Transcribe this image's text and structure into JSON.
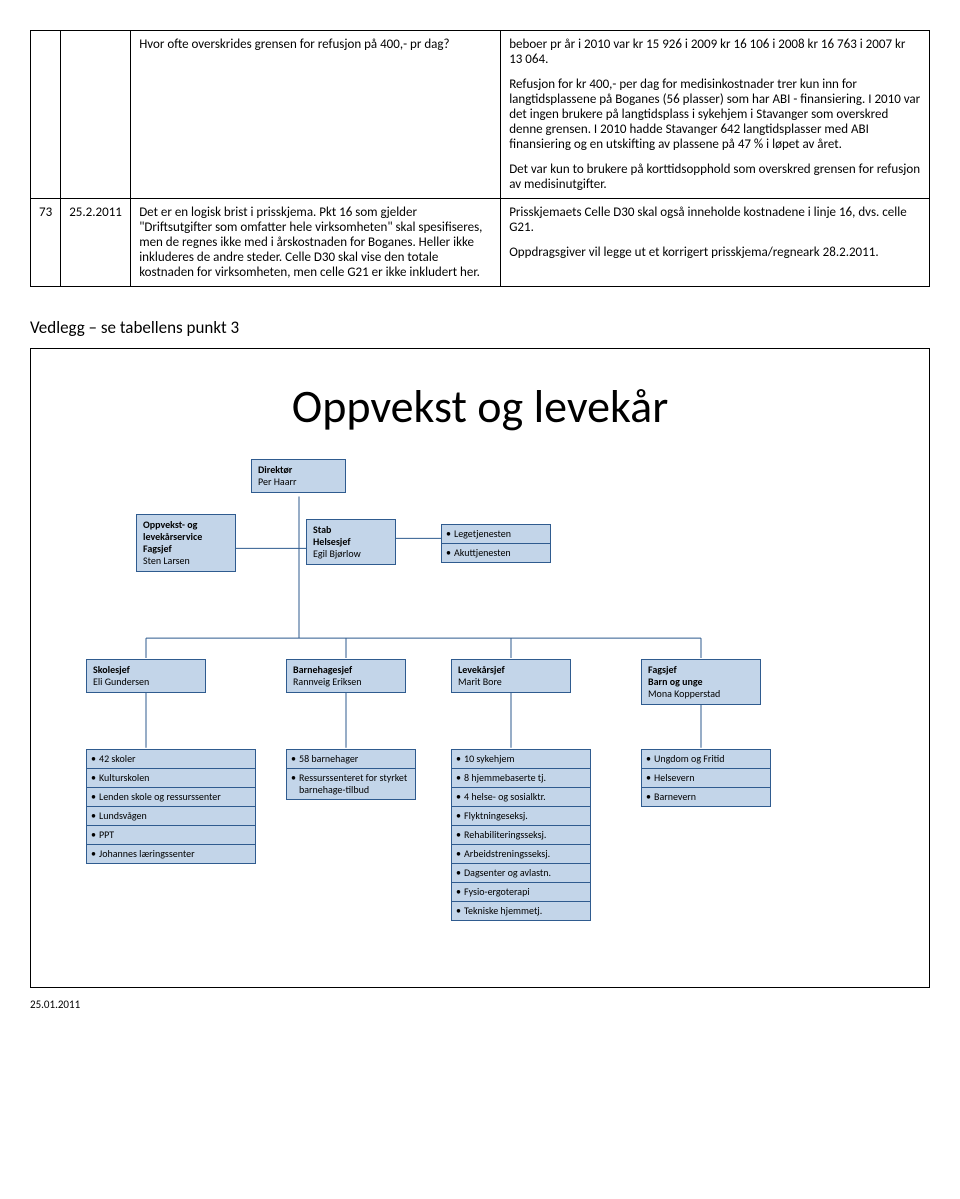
{
  "table": {
    "row1": {
      "q": "Hvor ofte overskrides grensen for refusjon på 400,- pr dag?",
      "a_p1": "beboer pr år i 2010 var kr 15 926 i 2009 kr 16 106 i 2008 kr 16 763 i 2007 kr 13 064.",
      "a_p2": "Refusjon for kr 400,- per dag for medisinkostnader trer kun inn for langtidsplassene på Boganes (56 plasser) som har ABI - finansiering. I 2010 var det ingen brukere på langtidsplass i sykehjem i Stavanger som overskred denne grensen. I 2010 hadde Stavanger 642 langtidsplasser med ABI finansiering og en utskifting av plassene på 47 % i løpet av året.",
      "a_p3": "Det var kun to brukere på korttidsopphold som overskred grensen for refusjon av medisinutgifter."
    },
    "row2": {
      "num": "73",
      "date": "25.2.2011",
      "q": "Det er en logisk brist i prisskjema. Pkt 16 som gjelder \"Driftsutgifter som omfatter hele virksomheten\" skal spesifiseres, men de regnes ikke med i årskostnaden for Boganes. Heller ikke inkluderes de andre steder. Celle D30 skal vise den totale kostnaden for virksomheten, men celle G21 er ikke inkludert her.",
      "a_p1": "Prisskjemaets Celle D30 skal også inneholde kostnadene i linje 16, dvs. celle G21.",
      "a_p2": "Oppdragsgiver vil legge ut et korrigert prisskjema/regneark 28.2.2011."
    }
  },
  "vedlegg_title": "Vedlegg – se tabellens punkt 3",
  "org": {
    "title": "Oppvekst og levekår",
    "direktor": {
      "title": "Direktør",
      "name": "Per Haarr"
    },
    "oppvekst": {
      "l1": "Oppvekst- og",
      "l2": "levekårservice",
      "l3": "Fagsjef",
      "l4": "Sten Larsen"
    },
    "stab": {
      "l1": "Stab",
      "l2": "Helsesjef",
      "l3": "Egil Bjørlow"
    },
    "lege": {
      "i1": "Legetjenesten",
      "i2": "Akuttjenesten"
    },
    "skolesjef": {
      "l1": "Skolesjef",
      "l2": "Eli Gundersen"
    },
    "barnehagesjef": {
      "l1": "Barnehagesjef",
      "l2": "Rannveig Eriksen"
    },
    "levekarsjef": {
      "l1": "Levekårsjef",
      "l2": "Marit Bore"
    },
    "fagsjef": {
      "l1": "Fagsjef",
      "l2": "Barn og unge",
      "l3": "Mona Kopperstad"
    },
    "col1": [
      "42 skoler",
      "Kulturskolen",
      "Lenden skole og ressurssenter",
      "Lundsvågen",
      "PPT",
      "Johannes læringssenter"
    ],
    "col2": [
      "58 barnehager",
      "Ressurssenteret for styrket barnehage-tilbud"
    ],
    "col3": [
      "10 sykehjem",
      "8 hjemmebaserte tj.",
      "4 helse- og sosialktr.",
      "Flyktningeseksj.",
      "Rehabiliteringsseksj.",
      "Arbeidstreningsseksj.",
      "Dagsenter og avlastn.",
      "Fysio-ergoterapi",
      "Tekniske hjemmetj."
    ],
    "col4": [
      "Ungdom og Fritid",
      "Helsevern",
      "Barnevern"
    ]
  },
  "footer_date": "25.01.2011"
}
